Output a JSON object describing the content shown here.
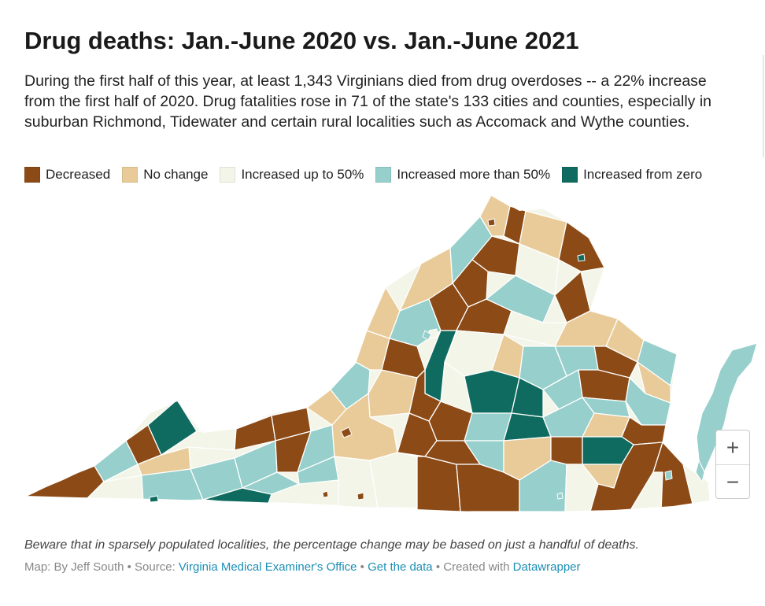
{
  "title": "Drug deaths: Jan.-June 2020 vs. Jan.-June 2021",
  "description": "During the first half of this year, at least 1,343 Virginians died from drug overdoses -- a 22% increase from the first half of 2020. Drug fatalities rose in 71 of the state's 133 cities and counties, especially in suburban Richmond, Tidewater and certain rural localities such as Accomack and Wythe counties.",
  "legend": [
    {
      "label": "Decreased",
      "color": "#8b4a16"
    },
    {
      "label": "No change",
      "color": "#e8cb98"
    },
    {
      "label": "Increased up to 50%",
      "color": "#f3f5e8"
    },
    {
      "label": "Increased more than 50%",
      "color": "#96cfcb"
    },
    {
      "label": "Increased from zero",
      "color": "#0f6b5f"
    }
  ],
  "zoom": {
    "in_label": "+",
    "out_label": "−"
  },
  "note": "Beware that in sparsely populated localities, the percentage change may be based on just a handful of deaths.",
  "footer": {
    "prefix": "Map: By Jeff South • Source: ",
    "source_link": "Virginia Medical Examiner's Office",
    "sep1": " • ",
    "data_link": "Get the data",
    "sep2": " • Created with ",
    "tool_link": "Datawrapper"
  }
}
